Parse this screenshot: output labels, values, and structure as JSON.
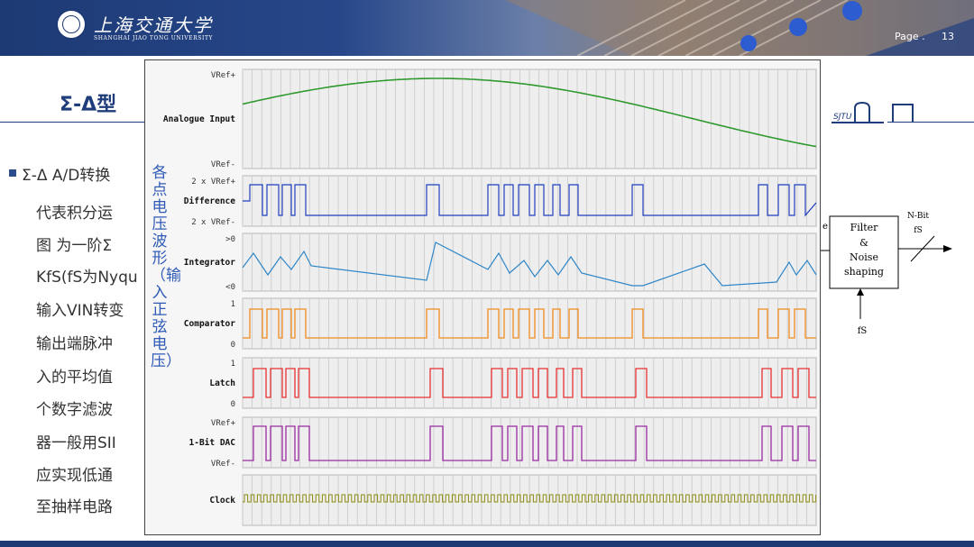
{
  "header": {
    "university_cn": "上海交通大学",
    "university_en": "SHANGHAI JIAO TONG UNIVERSITY",
    "page_label": "Page .",
    "page_number": "13",
    "sjtu_logo": "SJTU",
    "colors": {
      "primary": "#1d3a74"
    }
  },
  "title": "Σ-Δ型",
  "body": {
    "lines": [
      "Σ-Δ A/D转换",
      "代表积分运",
      "图 为一阶Σ",
      "KfS(fS为Nyqu",
      "输入VIN转变",
      "输出端脉冲",
      "入的平均值",
      "个数字滤波",
      "器一般用SII",
      "应实现低通",
      "至抽样电路"
    ],
    "vertical_note": "各点电压波形（输入正弦电压）"
  },
  "waveform": {
    "channels": [
      {
        "key": "analogue",
        "label": "Analogue Input",
        "top_tick": "VRef+",
        "bottom_tick": "VRef-",
        "color": "#2e9a2e"
      },
      {
        "key": "difference",
        "label": "Difference",
        "top_tick": "2 x VRef+",
        "bottom_tick": "2 x VRef-",
        "color": "#1f3fc0"
      },
      {
        "key": "integrator",
        "label": "Integrator",
        "top_tick": ">0",
        "bottom_tick": "<0",
        "color": "#2e86c8"
      },
      {
        "key": "comparator",
        "label": "Comparator",
        "top_tick": "1",
        "bottom_tick": "0",
        "color": "#f08a1c"
      },
      {
        "key": "latch",
        "label": "Latch",
        "top_tick": "1",
        "bottom_tick": "0",
        "color": "#e83030"
      },
      {
        "key": "dac",
        "label": "1-Bit DAC",
        "top_tick": "VRef+",
        "bottom_tick": "VRef-",
        "color": "#9a2aa0"
      },
      {
        "key": "clock",
        "label": "Clock",
        "top_tick": "",
        "bottom_tick": "",
        "color": "#8a8a10"
      }
    ]
  },
  "block_diagram": {
    "input_label": "e",
    "box_lines": [
      "Filter",
      "&",
      "Noise",
      "shaping"
    ],
    "output_label": "N-Bit",
    "output_sub": "fS",
    "clock_label": "fS"
  }
}
